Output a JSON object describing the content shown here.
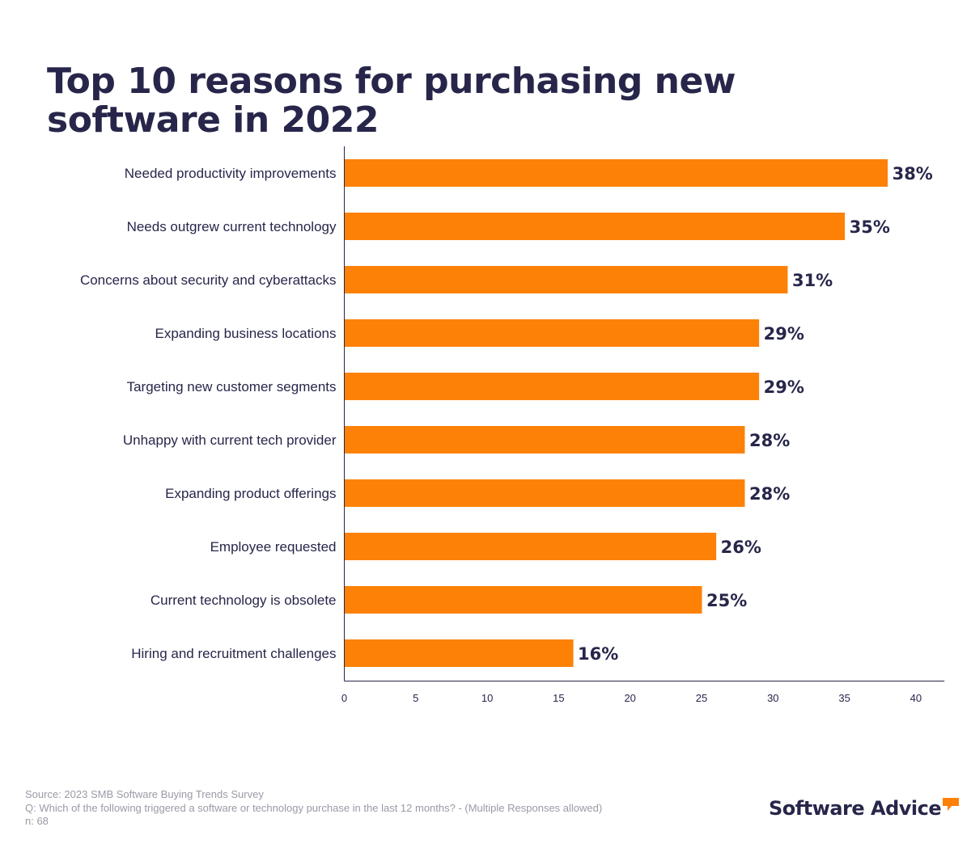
{
  "title_lines": [
    "Top 10 reasons for purchasing new",
    "software in 2022"
  ],
  "chart_data": {
    "type": "bar",
    "orientation": "horizontal",
    "categories": [
      "Needed productivity improvements",
      "Needs outgrew current technology",
      "Concerns about security and cyberattacks",
      "Expanding business locations",
      "Targeting new customer segments",
      "Unhappy with current tech provider",
      "Expanding product offerings",
      "Employee requested",
      "Current technology is obsolete",
      "Hiring and recruitment challenges"
    ],
    "values": [
      38,
      35,
      31,
      29,
      29,
      28,
      28,
      26,
      25,
      16
    ],
    "value_labels": [
      "38%",
      "35%",
      "31%",
      "29%",
      "29%",
      "28%",
      "28%",
      "26%",
      "25%",
      "16%"
    ],
    "xticks": [
      0,
      5,
      10,
      15,
      20,
      25,
      30,
      35,
      40
    ],
    "xlim": [
      0,
      42
    ],
    "grid": false,
    "bar_color": "#fd8106",
    "label_color": "#27264a"
  },
  "footer": {
    "source": "Source: 2023 SMB Software Buying Trends Survey",
    "question": "Q: Which of the following triggered a software or technology purchase in the last 12 months? - (Multiple Responses allowed)",
    "sample": "n: 68"
  },
  "brand": {
    "name": "Software Advice",
    "icon": "speech-bubble-icon",
    "icon_color": "#fd8106"
  }
}
